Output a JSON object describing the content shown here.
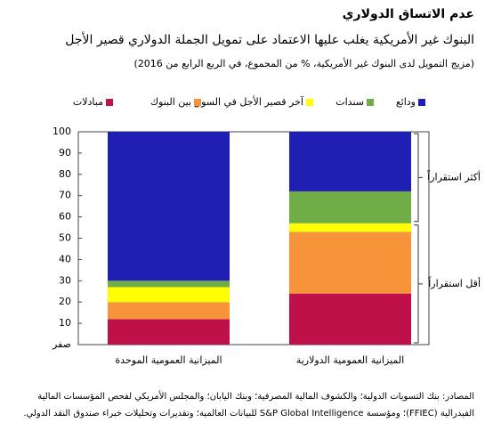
{
  "chart_data": {
    "type": "stacked_bar",
    "title": "عدم الاتساق الدولاري",
    "subtitle": "البنوك غير الأمريكية يغلب عليها الاعتماد على تمويل الجملة الدولاري قصير الأجل",
    "note": "(مزيج التمويل لدى البنوك غير الأمريكية، % من المجموع، في الربع الرابع من 2016)",
    "categories": [
      "الميزانية العمومية الموحدة",
      "الميزانية العمومية الدولارية"
    ],
    "series": [
      {
        "name": "مبادلات",
        "color": "#c0104a",
        "values": [
          12,
          24
        ]
      },
      {
        "name": "بين البنوك",
        "color": "#f7943a",
        "values": [
          8,
          29
        ]
      },
      {
        "name": "آخر قصير الأجل في السوق",
        "color": "#ffff00",
        "values": [
          7,
          4
        ]
      },
      {
        "name": "سندات",
        "color": "#70ad47",
        "values": [
          3,
          15
        ]
      },
      {
        "name": "ودائع",
        "color": "#1f1fb4",
        "values": [
          70,
          28
        ]
      }
    ],
    "ylim": [
      0,
      100
    ],
    "yticks": [
      {
        "value": 0,
        "label": "صفر"
      },
      10,
      20,
      30,
      40,
      50,
      60,
      70,
      80,
      90,
      100
    ],
    "grid": false,
    "annotations": [
      "أكثر استقراراً",
      "أقل استقراراً"
    ],
    "source": "المصادر: بنك التسويات الدولية؛ والكشوف المالية المصرفية؛ وبنك اليابان؛ والمجلس الأمريكي لفحص المؤسسات المالية الفيدرالية (FFIEC)؛ ومؤسسة S&P Global Intelligence للبيانات العالمية؛ وتقديرات وتحليلات خبراء صندوق النقد الدولي."
  }
}
